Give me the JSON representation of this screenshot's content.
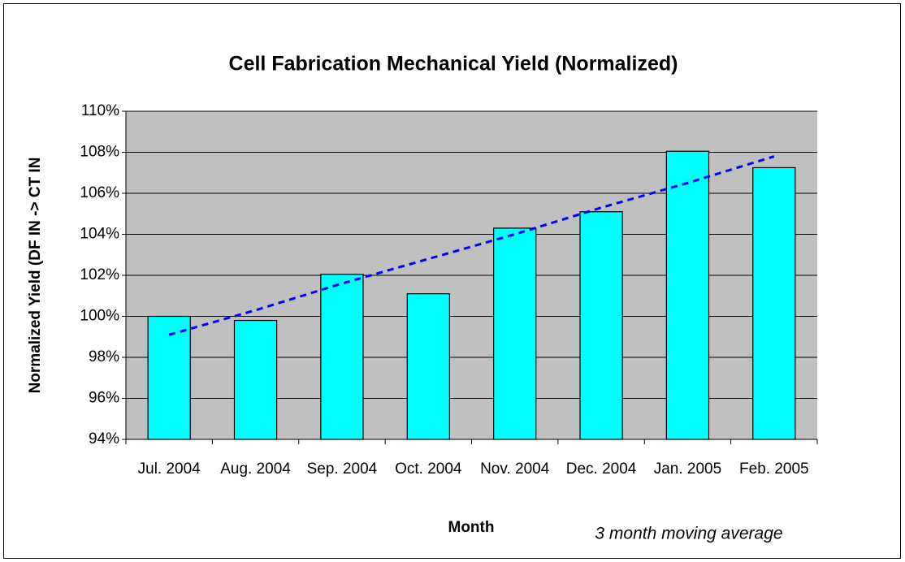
{
  "chart_data": {
    "type": "bar",
    "title": "Cell Fabrication Mechanical Yield (Normalized)",
    "x_label": "Month",
    "y_label": "Normalized Yield (DF IN -> CT IN",
    "categories": [
      "Jul. 2004",
      "Aug. 2004",
      "Sep. 2004",
      "Oct. 2004",
      "Nov. 2004",
      "Dec. 2004",
      "Jan. 2005",
      "Feb. 2005"
    ],
    "values": [
      100.0,
      99.8,
      102.05,
      101.1,
      104.3,
      105.1,
      108.05,
      107.25
    ],
    "color": "#00ffff",
    "trend": {
      "name": "3 month moving average",
      "color": "#0000ff",
      "values": [
        99.1,
        100.3,
        101.6,
        102.8,
        104.0,
        105.3,
        106.5,
        107.8
      ]
    },
    "ylim": [
      94,
      110
    ],
    "yticks": [
      {
        "value": 94,
        "label": "94%"
      },
      {
        "value": 96,
        "label": "96%"
      },
      {
        "value": 98,
        "label": "98%"
      },
      {
        "value": 100,
        "label": "100%"
      },
      {
        "value": 102,
        "label": "102%"
      },
      {
        "value": 104,
        "label": "104%"
      },
      {
        "value": 106,
        "label": "106%"
      },
      {
        "value": 108,
        "label": "108%"
      },
      {
        "value": 110,
        "label": "110%"
      }
    ],
    "grid": true
  }
}
